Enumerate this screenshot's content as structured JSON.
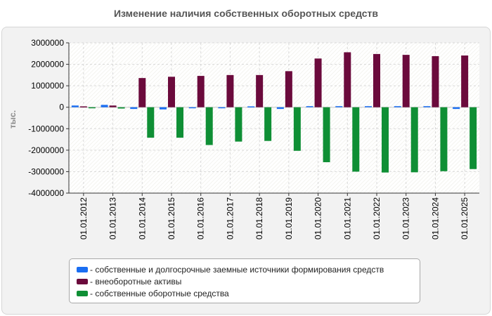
{
  "chart_data": {
    "type": "bar",
    "title": "Изменение наличия собственных оборотных средств",
    "ylabel": "тыс.",
    "xlabel": "",
    "ylim": [
      -4000000,
      3000000
    ],
    "yticks": [
      3000000,
      2000000,
      1000000,
      0,
      -1000000,
      -2000000,
      -3000000,
      -4000000
    ],
    "ytick_labels": [
      "3000000",
      "2000000",
      "1000000",
      "0",
      "-1000000",
      "-2000000",
      "-3000000",
      "-4000000"
    ],
    "grid": true,
    "legend_position": "bottom",
    "categories": [
      "01.01.2012",
      "01.01.2013",
      "01.01.2014",
      "01.01.2015",
      "01.01.2016",
      "01.01.2017",
      "01.01.2018",
      "01.01.2019",
      "01.01.2020",
      "01.01.2021",
      "01.01.2022",
      "01.01.2023",
      "01.01.2024",
      "01.01.2025"
    ],
    "series": [
      {
        "name": "- собственные и долгосрочные заемные источники формирования средств",
        "color": "#1a6ef2",
        "values": [
          80000,
          110000,
          -80000,
          -100000,
          -20000,
          -30000,
          40000,
          -80000,
          50000,
          50000,
          50000,
          50000,
          50000,
          -80000
        ]
      },
      {
        "name": "- внеоборотные активы",
        "color": "#6b0a3c",
        "values": [
          40000,
          80000,
          1360000,
          1420000,
          1460000,
          1500000,
          1500000,
          1680000,
          2270000,
          2560000,
          2480000,
          2440000,
          2380000,
          2410000
        ]
      },
      {
        "name": "- собственные оборотные средства",
        "color": "#0f8f35",
        "values": [
          -30000,
          -60000,
          -1420000,
          -1420000,
          -1760000,
          -1600000,
          -1570000,
          -2030000,
          -2560000,
          -3000000,
          -3040000,
          -3030000,
          -2980000,
          -2880000
        ]
      }
    ]
  }
}
